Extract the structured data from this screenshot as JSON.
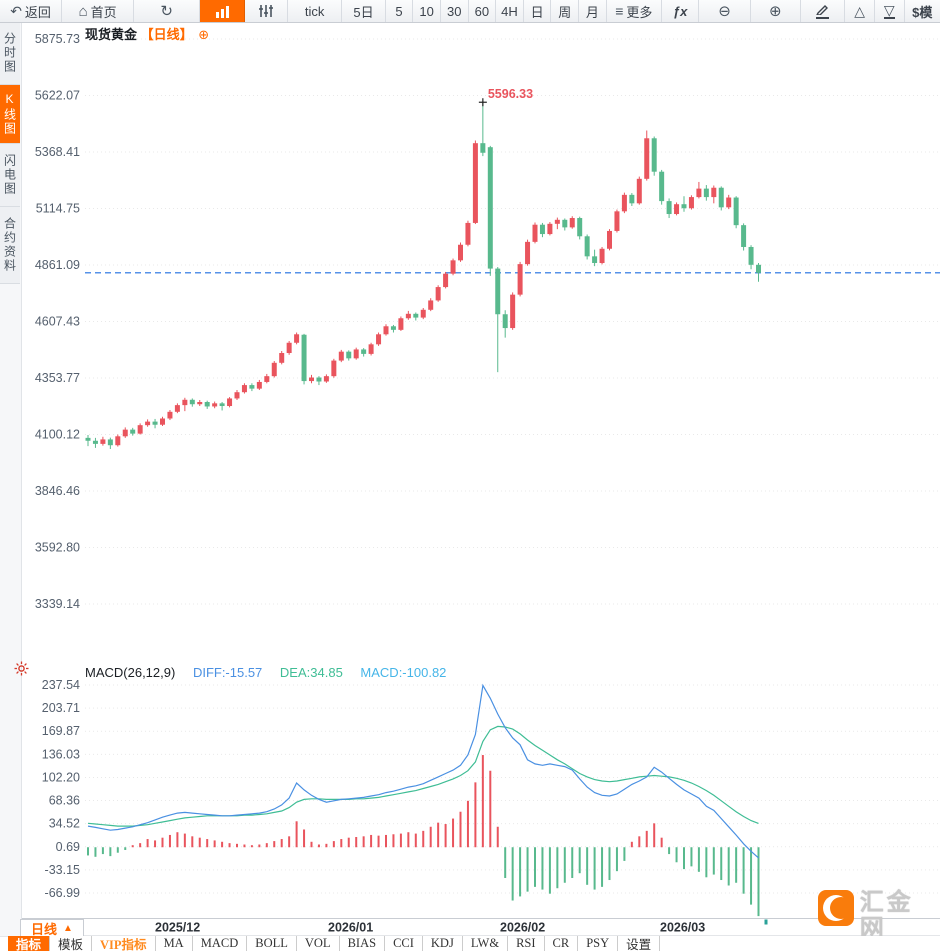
{
  "toolbar": {
    "back": "返回",
    "home": "首页",
    "tick": "tick",
    "d5": "5日",
    "n5": "5",
    "n10": "10",
    "n30": "30",
    "n60": "60",
    "h4": "4H",
    "day": "日",
    "week": "周",
    "month": "月",
    "more": "更多",
    "fx": "fx",
    "sim": "$模"
  },
  "sidebar": {
    "tabs": [
      {
        "label": "分时图",
        "active": false
      },
      {
        "label": "K线图",
        "active": true
      },
      {
        "label": "闪电图",
        "active": false
      },
      {
        "label": "合约资料",
        "active": false
      }
    ]
  },
  "chart_header": {
    "name": "现货黄金",
    "period": "【日线】",
    "add_icon": "⊕"
  },
  "macd_header": {
    "title": "MACD(26,12,9)",
    "diff": "DIFF:-15.57",
    "dea": "DEA:34.85",
    "macd": "MACD:-100.82"
  },
  "bottom": {
    "period": "日线",
    "months": [
      {
        "label": "2025/12",
        "x": 155
      },
      {
        "label": "2026/01",
        "x": 328
      },
      {
        "label": "2026/02",
        "x": 500
      },
      {
        "label": "2026/03",
        "x": 660
      }
    ],
    "indicators": [
      {
        "label": "指标",
        "style": "active"
      },
      {
        "label": "模板",
        "style": ""
      },
      {
        "label": "VIP指标",
        "style": "vip"
      },
      {
        "label": "MA",
        "style": ""
      },
      {
        "label": "MACD",
        "style": ""
      },
      {
        "label": "BOLL",
        "style": ""
      },
      {
        "label": "VOL",
        "style": ""
      },
      {
        "label": "BIAS",
        "style": ""
      },
      {
        "label": "CCI",
        "style": ""
      },
      {
        "label": "KDJ",
        "style": ""
      },
      {
        "label": "LW&",
        "style": ""
      },
      {
        "label": "RSI",
        "style": ""
      },
      {
        "label": "CR",
        "style": ""
      },
      {
        "label": "PSY",
        "style": ""
      },
      {
        "label": "设置",
        "style": ""
      }
    ]
  },
  "watermark": {
    "name": "汇金网",
    "url": "www.gold678.com"
  },
  "colors": {
    "accent": "#ff6a00",
    "candle_up": "#e9545d",
    "candle_down": "#58b98d",
    "diff": "#4a90e2",
    "dea": "#3fbd95",
    "macd_value": "#45b5e8",
    "price_line": "#1e6fe0",
    "annotation": "#e9545d",
    "axis_text": "#55606e",
    "grid": "#e9e9e9",
    "month_text": "#2d3238"
  },
  "chart_data": [
    {
      "type": "candlestick",
      "symbol": "现货黄金",
      "period": "日线",
      "y_ticks": [
        "5875.73",
        "5622.07",
        "5368.41",
        "5114.75",
        "4861.09",
        "4607.43",
        "4353.77",
        "4100.12",
        "3846.46",
        "3592.80",
        "3339.14"
      ],
      "y_top_value": 5875.73,
      "y_bottom_value": 3339.14,
      "peak_annotation": "5596.33",
      "peak_index": 53,
      "last_price_line": 4826,
      "candles": [
        [
          4085,
          4098,
          4048,
          4072
        ],
        [
          4072,
          4085,
          4040,
          4058
        ],
        [
          4058,
          4090,
          4050,
          4078
        ],
        [
          4078,
          4086,
          4035,
          4052
        ],
        [
          4052,
          4100,
          4046,
          4092
        ],
        [
          4092,
          4132,
          4085,
          4122
        ],
        [
          4122,
          4130,
          4095,
          4104
        ],
        [
          4104,
          4150,
          4100,
          4142
        ],
        [
          4142,
          4168,
          4135,
          4158
        ],
        [
          4158,
          4170,
          4128,
          4144
        ],
        [
          4144,
          4180,
          4138,
          4172
        ],
        [
          4172,
          4210,
          4165,
          4202
        ],
        [
          4202,
          4240,
          4196,
          4232
        ],
        [
          4232,
          4265,
          4205,
          4256
        ],
        [
          4256,
          4262,
          4225,
          4236
        ],
        [
          4236,
          4255,
          4228,
          4246
        ],
        [
          4246,
          4252,
          4215,
          4226
        ],
        [
          4226,
          4248,
          4218,
          4240
        ],
        [
          4240,
          4246,
          4208,
          4228
        ],
        [
          4228,
          4268,
          4222,
          4262
        ],
        [
          4262,
          4300,
          4255,
          4290
        ],
        [
          4290,
          4330,
          4284,
          4322
        ],
        [
          4322,
          4330,
          4295,
          4306
        ],
        [
          4306,
          4345,
          4300,
          4336
        ],
        [
          4336,
          4372,
          4330,
          4362
        ],
        [
          4362,
          4430,
          4356,
          4422
        ],
        [
          4422,
          4475,
          4415,
          4466
        ],
        [
          4466,
          4520,
          4458,
          4512
        ],
        [
          4512,
          4558,
          4505,
          4550
        ],
        [
          4548,
          4552,
          4325,
          4340
        ],
        [
          4340,
          4368,
          4330,
          4356
        ],
        [
          4356,
          4362,
          4322,
          4338
        ],
        [
          4338,
          4370,
          4332,
          4362
        ],
        [
          4362,
          4440,
          4355,
          4432
        ],
        [
          4432,
          4480,
          4425,
          4472
        ],
        [
          4472,
          4478,
          4432,
          4442
        ],
        [
          4442,
          4490,
          4436,
          4482
        ],
        [
          4482,
          4488,
          4450,
          4462
        ],
        [
          4462,
          4512,
          4455,
          4505
        ],
        [
          4505,
          4558,
          4498,
          4550
        ],
        [
          4550,
          4595,
          4544,
          4586
        ],
        [
          4586,
          4592,
          4558,
          4570
        ],
        [
          4570,
          4630,
          4565,
          4622
        ],
        [
          4622,
          4655,
          4615,
          4642
        ],
        [
          4642,
          4648,
          4612,
          4625
        ],
        [
          4625,
          4668,
          4618,
          4660
        ],
        [
          4660,
          4712,
          4654,
          4702
        ],
        [
          4702,
          4770,
          4696,
          4762
        ],
        [
          4762,
          4830,
          4756,
          4822
        ],
        [
          4822,
          4890,
          4815,
          4882
        ],
        [
          4882,
          4962,
          4875,
          4952
        ],
        [
          4952,
          5060,
          4945,
          5050
        ],
        [
          5050,
          5420,
          5045,
          5408
        ],
        [
          5408,
          5596.33,
          5350,
          5365
        ],
        [
          5390,
          5396,
          4812,
          4845
        ],
        [
          4845,
          4852,
          4380,
          4640
        ],
        [
          4640,
          4658,
          4535,
          4578
        ],
        [
          4578,
          4738,
          4570,
          4728
        ],
        [
          4728,
          4875,
          4720,
          4865
        ],
        [
          4865,
          4975,
          4858,
          4965
        ],
        [
          4965,
          5052,
          4958,
          5042
        ],
        [
          5042,
          5050,
          4986,
          5000
        ],
        [
          5000,
          5054,
          4994,
          5046
        ],
        [
          5046,
          5074,
          5022,
          5064
        ],
        [
          5064,
          5070,
          5016,
          5030
        ],
        [
          5030,
          5080,
          5024,
          5072
        ],
        [
          5072,
          5078,
          4976,
          4990
        ],
        [
          4990,
          4998,
          4886,
          4900
        ],
        [
          4900,
          4930,
          4856,
          4870
        ],
        [
          4870,
          4942,
          4864,
          4934
        ],
        [
          4934,
          5022,
          4927,
          5014
        ],
        [
          5014,
          5110,
          5007,
          5102
        ],
        [
          5102,
          5186,
          5094,
          5176
        ],
        [
          5176,
          5184,
          5126,
          5138
        ],
        [
          5138,
          5258,
          5132,
          5248
        ],
        [
          5248,
          5465,
          5240,
          5430
        ],
        [
          5430,
          5438,
          5262,
          5280
        ],
        [
          5280,
          5288,
          5132,
          5148
        ],
        [
          5148,
          5160,
          5072,
          5090
        ],
        [
          5090,
          5142,
          5084,
          5134
        ],
        [
          5134,
          5170,
          5100,
          5116
        ],
        [
          5116,
          5174,
          5110,
          5166
        ],
        [
          5166,
          5234,
          5160,
          5204
        ],
        [
          5204,
          5220,
          5150,
          5166
        ],
        [
          5166,
          5218,
          5138,
          5208
        ],
        [
          5208,
          5214,
          5106,
          5120
        ],
        [
          5120,
          5176,
          5112,
          5164
        ],
        [
          5164,
          5170,
          5026,
          5040
        ],
        [
          5040,
          5048,
          4926,
          4942
        ],
        [
          4942,
          4950,
          4842,
          4862
        ],
        [
          4862,
          4870,
          4786,
          4826
        ]
      ]
    },
    {
      "type": "macd",
      "title": "MACD(26,12,9)",
      "diff_last": -15.57,
      "dea_last": 34.85,
      "macd_last": -100.82,
      "y_ticks": [
        "237.54",
        "203.71",
        "169.87",
        "136.03",
        "102.20",
        "68.36",
        "34.52",
        "0.69",
        "-33.15",
        "-66.99"
      ],
      "y_top_value": 237.54,
      "y_bottom_value": -66.99,
      "diff": [
        31,
        29,
        27,
        25,
        26,
        28,
        30,
        33,
        36,
        40,
        44,
        47,
        50,
        51,
        50,
        49,
        48,
        47,
        46,
        46,
        47,
        48,
        49,
        50,
        52,
        56,
        62,
        72,
        94,
        84,
        76,
        70,
        66,
        68,
        70,
        71,
        72,
        73,
        75,
        77,
        80,
        82,
        85,
        88,
        90,
        93,
        98,
        103,
        108,
        113,
        120,
        135,
        165,
        237,
        218,
        195,
        175,
        160,
        150,
        128,
        122,
        120,
        122,
        120,
        118,
        113,
        100,
        88,
        80,
        76,
        75,
        78,
        85,
        92,
        97,
        103,
        117,
        110,
        101,
        92,
        84,
        78,
        72,
        60,
        54,
        42,
        30,
        18,
        5,
        -6,
        -15.57
      ],
      "dea": [
        35,
        34,
        33,
        32,
        31,
        31,
        31,
        32,
        33,
        35,
        37,
        39,
        41,
        43,
        44,
        45,
        46,
        46,
        46,
        46,
        46,
        47,
        47,
        48,
        49,
        51,
        53,
        58,
        66,
        70,
        71,
        71,
        70,
        70,
        70,
        70,
        71,
        71,
        72,
        73,
        75,
        77,
        79,
        81,
        83,
        86,
        89,
        92,
        96,
        100,
        105,
        112,
        125,
        155,
        172,
        177,
        176,
        173,
        166,
        157,
        149,
        142,
        135,
        128,
        122,
        115,
        108,
        103,
        99,
        97,
        96,
        97,
        99,
        101,
        103,
        104,
        105,
        104,
        103,
        101,
        98,
        94,
        89,
        83,
        76,
        68,
        60,
        52,
        45,
        39,
        34.85
      ],
      "hist": [
        -12,
        -14,
        -10,
        -13,
        -8,
        -4,
        3,
        6,
        12,
        10,
        14,
        18,
        22,
        20,
        16,
        14,
        12,
        10,
        8,
        6,
        5,
        4,
        3,
        4,
        6,
        9,
        12,
        16,
        38,
        26,
        8,
        4,
        5,
        9,
        12,
        14,
        15,
        16,
        18,
        17,
        18,
        19,
        20,
        22,
        20,
        24,
        30,
        36,
        34,
        42,
        52,
        68,
        95,
        135,
        112,
        30,
        -45,
        -78,
        -72,
        -65,
        -58,
        -62,
        -68,
        -60,
        -52,
        -45,
        -38,
        -55,
        -62,
        -58,
        -48,
        -35,
        -20,
        8,
        16,
        24,
        35,
        14,
        -10,
        -22,
        -32,
        -28,
        -36,
        -44,
        -40,
        -48,
        -56,
        -52,
        -68,
        -84,
        -100.82
      ]
    }
  ]
}
